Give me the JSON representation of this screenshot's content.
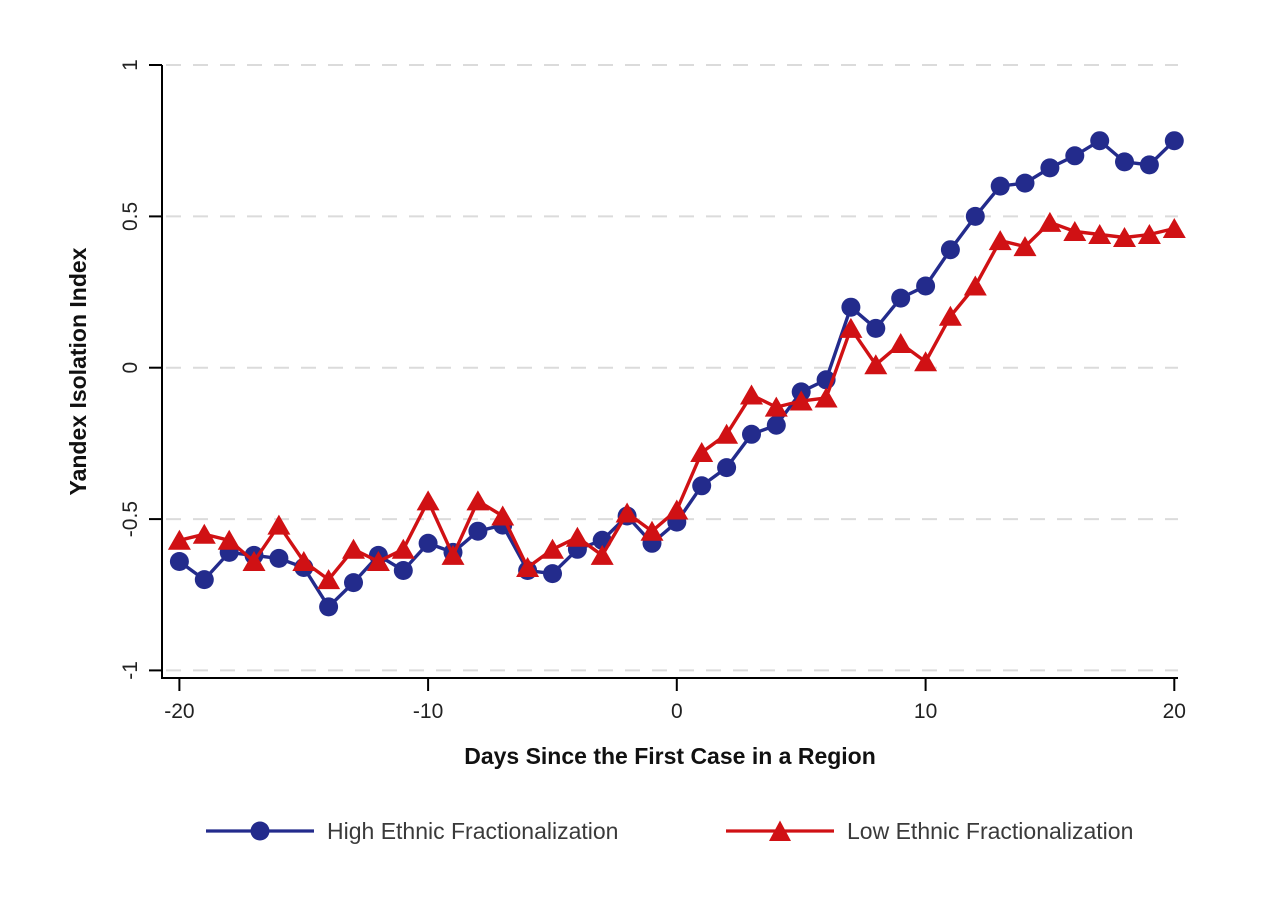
{
  "chart_data": {
    "type": "line",
    "title": "",
    "xlabel": "Days Since the First Case in a Region",
    "ylabel": "Yandex Isolation Index",
    "x": [
      -20,
      -19,
      -18,
      -17,
      -16,
      -15,
      -14,
      -13,
      -12,
      -11,
      -10,
      -9,
      -8,
      -7,
      -6,
      -5,
      -4,
      -3,
      -2,
      -1,
      0,
      1,
      2,
      3,
      4,
      5,
      6,
      7,
      8,
      9,
      10,
      11,
      12,
      13,
      14,
      15,
      16,
      17,
      18,
      19,
      20
    ],
    "series": [
      {
        "name": "High Ethnic Fractionalization",
        "marker": "circle",
        "color": "#232B8C",
        "values": [
          -0.64,
          -0.7,
          -0.61,
          -0.62,
          -0.63,
          -0.66,
          -0.79,
          -0.71,
          -0.62,
          -0.67,
          -0.58,
          -0.61,
          -0.54,
          -0.52,
          -0.67,
          -0.68,
          -0.6,
          -0.57,
          -0.49,
          -0.58,
          -0.51,
          -0.39,
          -0.33,
          -0.22,
          -0.19,
          -0.08,
          -0.04,
          0.2,
          0.13,
          0.23,
          0.27,
          0.39,
          0.5,
          0.6,
          0.61,
          0.66,
          0.7,
          0.75,
          0.68,
          0.67,
          0.75
        ]
      },
      {
        "name": "Low Ethnic Fractionalization",
        "marker": "triangle",
        "color": "#D01114",
        "values": [
          -0.57,
          -0.55,
          -0.57,
          -0.64,
          -0.52,
          -0.64,
          -0.7,
          -0.6,
          -0.64,
          -0.6,
          -0.44,
          -0.62,
          -0.44,
          -0.49,
          -0.66,
          -0.6,
          -0.56,
          -0.62,
          -0.48,
          -0.54,
          -0.47,
          -0.28,
          -0.22,
          -0.09,
          -0.13,
          -0.11,
          -0.1,
          0.13,
          0.01,
          0.08,
          0.02,
          0.17,
          0.27,
          0.42,
          0.4,
          0.48,
          0.45,
          0.44,
          0.43,
          0.44,
          0.46
        ]
      }
    ],
    "xticks": [
      -20,
      -10,
      0,
      10,
      20
    ],
    "xtick_labels": [
      "-20",
      "-10",
      "0",
      "10",
      "20"
    ],
    "yticks": [
      1,
      0.5,
      0,
      -0.5,
      -1
    ],
    "ytick_labels": [
      "1",
      "0.5",
      "0",
      "-0.5",
      "-1"
    ],
    "xlim": [
      -20.7,
      20.15
    ],
    "ylim": [
      -1.025,
      1.0
    ],
    "grid": "horizontal-dashed",
    "grid_color": "#DBDBDB",
    "axis_color": "#000000",
    "tick_text_color": "#222222",
    "axis_title_color": "#111111",
    "legend_position": "bottom"
  }
}
